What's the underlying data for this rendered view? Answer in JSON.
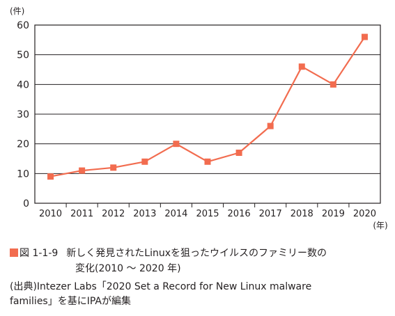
{
  "chart_data": {
    "type": "line",
    "y_unit_label": "(件)",
    "x_unit_label": "(年)",
    "categories": [
      "2010",
      "2011",
      "2012",
      "2013",
      "2014",
      "2015",
      "2016",
      "2017",
      "2018",
      "2019",
      "2020"
    ],
    "series": [
      {
        "values": [
          9,
          11,
          12,
          14,
          20,
          14,
          17,
          26,
          46,
          40,
          56
        ]
      }
    ],
    "ylim": [
      0,
      60
    ],
    "yticks": [
      0,
      10,
      20,
      30,
      40,
      50,
      60
    ],
    "grid": true,
    "line_color": "#f26c4f",
    "marker": "square"
  },
  "caption": {
    "figure_id": "図 1-1-9",
    "title_line1": "新しく発見されたLinuxを狙ったウイルスのファミリー数の",
    "title_line2": "変化(2010 ～ 2020 年)",
    "source_line1": "(出典)Intezer Labs「2020 Set a Record for New Linux malware",
    "source_line2": "families」を基にIPAが編集"
  }
}
